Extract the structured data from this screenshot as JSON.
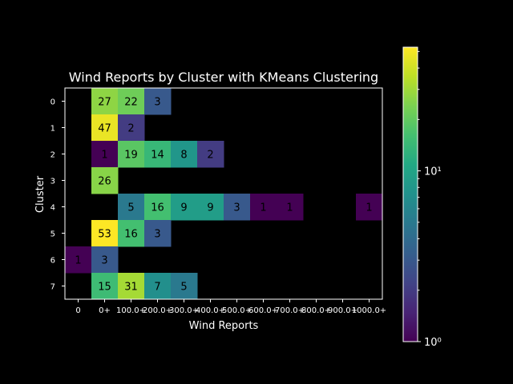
{
  "chart_data": {
    "type": "heatmap",
    "title": "Wind Reports by Cluster with KMeans Clustering",
    "xlabel": "Wind Reports",
    "ylabel": "Cluster",
    "x_categories": [
      "0",
      "0+",
      "100.0+",
      "200.0+",
      "300.0+",
      "400.0+",
      "500.0+",
      "600.0+",
      "700.0+",
      "800.0+",
      "900.0+",
      "1000.0+"
    ],
    "y_categories": [
      "0",
      "1",
      "2",
      "3",
      "4",
      "5",
      "6",
      "7"
    ],
    "values": [
      [
        null,
        27,
        22,
        3,
        null,
        null,
        null,
        null,
        null,
        null,
        null,
        null
      ],
      [
        null,
        47,
        2,
        null,
        null,
        null,
        null,
        null,
        null,
        null,
        null,
        null
      ],
      [
        null,
        1,
        19,
        14,
        8,
        2,
        null,
        null,
        null,
        null,
        null,
        null
      ],
      [
        null,
        26,
        null,
        null,
        null,
        null,
        null,
        null,
        null,
        null,
        null,
        null
      ],
      [
        null,
        null,
        5,
        16,
        9,
        9,
        3,
        1,
        1,
        null,
        null,
        1
      ],
      [
        null,
        53,
        16,
        3,
        null,
        null,
        null,
        null,
        null,
        null,
        null,
        null
      ],
      [
        1,
        3,
        null,
        null,
        null,
        null,
        null,
        null,
        null,
        null,
        null,
        null
      ],
      [
        null,
        15,
        31,
        7,
        5,
        null,
        null,
        null,
        null,
        null,
        null,
        null
      ]
    ],
    "color_scale": "log",
    "colormap": "viridis",
    "color_range": [
      1,
      53
    ],
    "colorbar_ticks": [
      {
        "value": 1,
        "label": "10⁰"
      },
      {
        "value": 10,
        "label": "10¹"
      }
    ],
    "grid": false,
    "background": "#000000",
    "text_color": "#ffffff"
  }
}
